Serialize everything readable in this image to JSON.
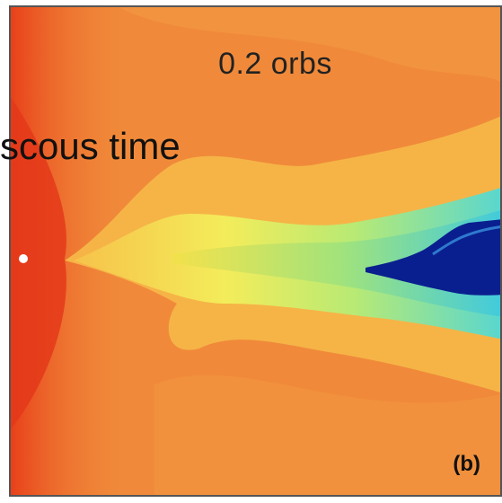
{
  "figure": {
    "time_label": "0.2 orbs",
    "panel_label": "(b)",
    "overlay_caption": "scous time",
    "colors": {
      "background_orange": "#f08a3a",
      "deep_red": "#e8401a",
      "yellow": "#f2e14a",
      "cyan": "#58d6d0",
      "navy_core": "#0a1f8f",
      "frame": "#555555"
    }
  }
}
